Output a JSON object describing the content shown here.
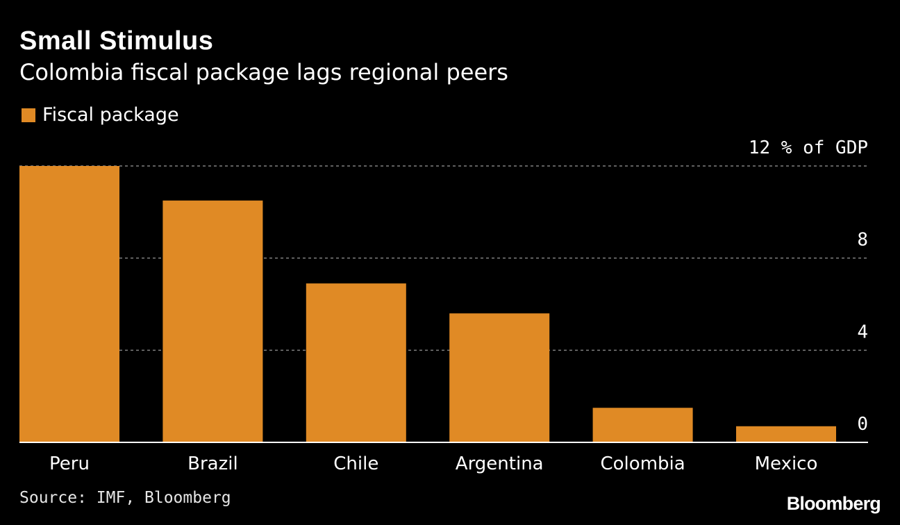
{
  "header": {
    "title": "Small Stimulus",
    "subtitle": "Colombia fiscal package lags regional peers"
  },
  "legend": {
    "label": "Fiscal package"
  },
  "footer": {
    "source": "Source: IMF, Bloomberg",
    "logo": "Bloomberg"
  },
  "colors": {
    "bar": "#e08a25",
    "background": "#000000",
    "gridline": "#808080",
    "axis": "#ffffff"
  },
  "chart_data": {
    "type": "bar",
    "categories": [
      "Peru",
      "Brazil",
      "Chile",
      "Argentina",
      "Colombia",
      "Mexico"
    ],
    "series": [
      {
        "name": "Fiscal package",
        "values": [
          12.0,
          10.5,
          6.9,
          5.6,
          1.5,
          0.7
        ]
      }
    ],
    "ylim": [
      0,
      12
    ],
    "y_ticks": [
      0,
      4,
      8,
      12
    ],
    "y_tick_labels": [
      "0",
      "4",
      "8",
      "12 % of GDP"
    ],
    "y_axis_position": "right",
    "grid": true,
    "legend_position": "top-left"
  }
}
